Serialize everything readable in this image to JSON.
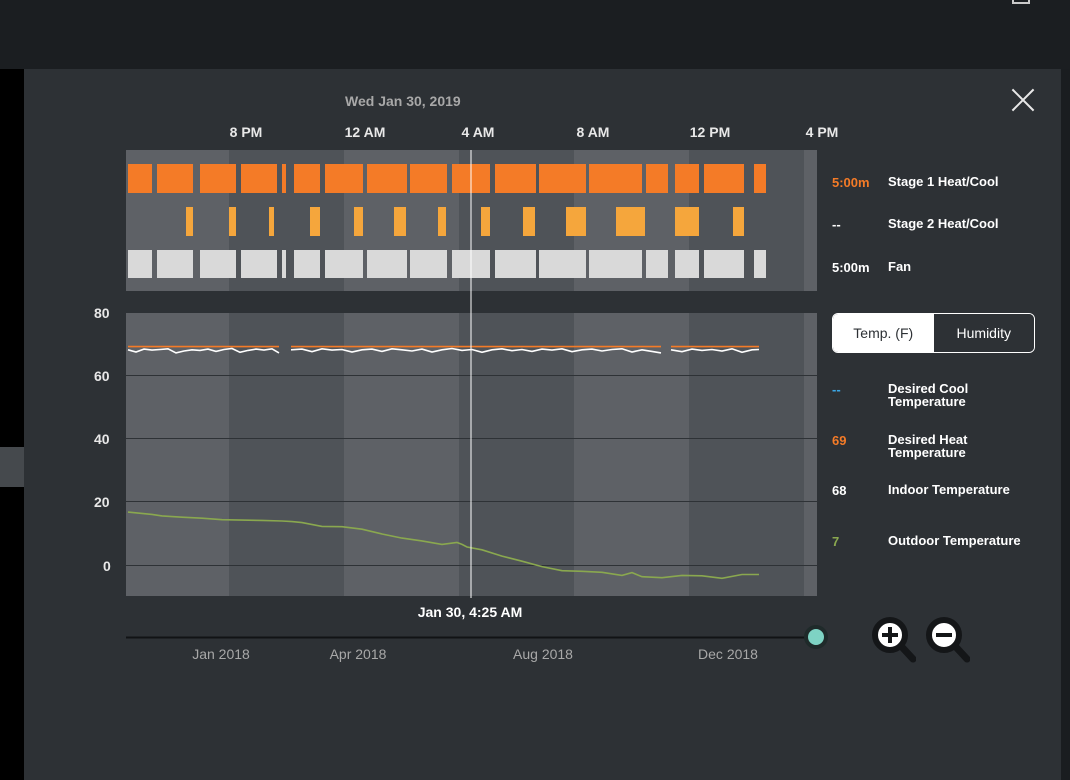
{
  "header": {
    "date": "Wed Jan 30, 2019"
  },
  "time_ticks": [
    "8 PM",
    "12 AM",
    "4 AM",
    "8 AM",
    "12 PM",
    "4 PM"
  ],
  "runtime_legend": [
    {
      "value": "5:00m",
      "label": "Stage 1 Heat/Cool",
      "color": "#f47b27"
    },
    {
      "value": "--",
      "label": "Stage 2 Heat/Cool",
      "color": "#ffffff"
    },
    {
      "value": "5:00m",
      "label": "Fan",
      "color": "#ffffff"
    }
  ],
  "toggle": {
    "active": "Temp. (F)",
    "inactive": "Humidity"
  },
  "temp_legend": [
    {
      "value": "--",
      "label": "Desired Cool Temperature",
      "color": "#3ba7e6"
    },
    {
      "value": "69",
      "label": "Desired Heat Temperature",
      "color": "#f47b27"
    },
    {
      "value": "68",
      "label": "Indoor Temperature",
      "color": "#ffffff"
    },
    {
      "value": "7",
      "label": "Outdoor Temperature",
      "color": "#8aa84f"
    }
  ],
  "chart_data": {
    "type": "line",
    "ylim": [
      -10,
      80
    ],
    "yticks": [
      80,
      60,
      40,
      20,
      0
    ],
    "x_ticks": [
      "8 PM",
      "12 AM",
      "4 AM",
      "8 AM",
      "12 PM",
      "4 PM"
    ],
    "cursor_label": "Jan 30, 4:25 AM",
    "series": [
      {
        "name": "Desired Heat Temperature",
        "color": "#f47b27",
        "segments": [
          {
            "x": [
              6,
              157
            ],
            "y": [
              69,
              69
            ]
          },
          {
            "x": [
              169,
              539
            ],
            "y": [
              69,
              69
            ]
          },
          {
            "x": [
              549,
              637
            ],
            "y": [
              69,
              69
            ]
          }
        ]
      },
      {
        "name": "Indoor Temperature",
        "color": "#ffffff",
        "segments": [
          {
            "x": [
              6,
              14,
              22,
              30,
              38,
              46,
              54,
              62,
              70,
              78,
              86,
              94,
              102,
              110,
              118,
              126,
              134,
              142,
              150,
              157
            ],
            "y": [
              68,
              67.3,
              68.2,
              67.9,
              68.1,
              68.3,
              67,
              67.6,
              68,
              67.8,
              68.2,
              67.5,
              68.1,
              68.4,
              67.2,
              67.8,
              68.2,
              67.9,
              68.3,
              67
            ]
          },
          {
            "x": [
              169,
              180,
              190,
              200,
              210,
              220,
              230,
              240,
              250,
              260,
              270,
              280,
              290,
              300,
              310,
              320,
              330,
              340,
              350,
              360,
              370,
              380,
              390,
              400,
              410,
              420,
              430,
              440,
              450,
              460,
              470,
              480,
              490,
              500,
              510,
              520,
              530,
              539
            ],
            "y": [
              68,
              68.2,
              67.4,
              68.3,
              67.9,
              68.1,
              67.3,
              68,
              68.2,
              67.5,
              68.3,
              68,
              67.6,
              68.2,
              67.3,
              68,
              68.4,
              67.8,
              68.1,
              67.2,
              68,
              68.3,
              67.7,
              68.1,
              67.5,
              68.2,
              67.9,
              68.3,
              67.4,
              68,
              68.2,
              67.6,
              68.1,
              68.3,
              67.3,
              68,
              67.5,
              67
            ]
          },
          {
            "x": [
              549,
              560,
              570,
              580,
              590,
              600,
              610,
              620,
              630,
              637
            ],
            "y": [
              68,
              67.4,
              68.2,
              67.8,
              68.1,
              67.6,
              68.3,
              67.2,
              68,
              68.1
            ]
          }
        ]
      },
      {
        "name": "Outdoor Temperature",
        "color": "#8aa84f",
        "segments": [
          {
            "x": [
              6,
              30,
              40,
              60,
              80,
              100,
              120,
              140,
              160,
              170,
              180,
              200,
              220,
              240,
              260,
              280,
              300,
              320,
              335,
              340,
              345,
              360,
              380,
              400,
              420,
              440,
              460,
              480,
              500,
              510,
              520,
              540,
              560,
              580,
              600,
              620,
              637
            ],
            "y": [
              16.7,
              16,
              15.5,
              15.1,
              14.8,
              14.3,
              14.2,
              14.1,
              13.9,
              13.7,
              13.4,
              12.2,
              12.1,
              11.3,
              9.8,
              8.5,
              7.6,
              6.5,
              7.1,
              6.5,
              5.7,
              4.8,
              2.8,
              1.2,
              -0.5,
              -1.8,
              -2,
              -2.3,
              -3.3,
              -2.4,
              -3.7,
              -4,
              -3.3,
              -3.4,
              -4.2,
              -3,
              -3
            ]
          }
        ]
      }
    ]
  },
  "timeline": {
    "labels": [
      "Jan 2018",
      "Apr 2018",
      "Aug 2018",
      "Dec 2018"
    ]
  }
}
